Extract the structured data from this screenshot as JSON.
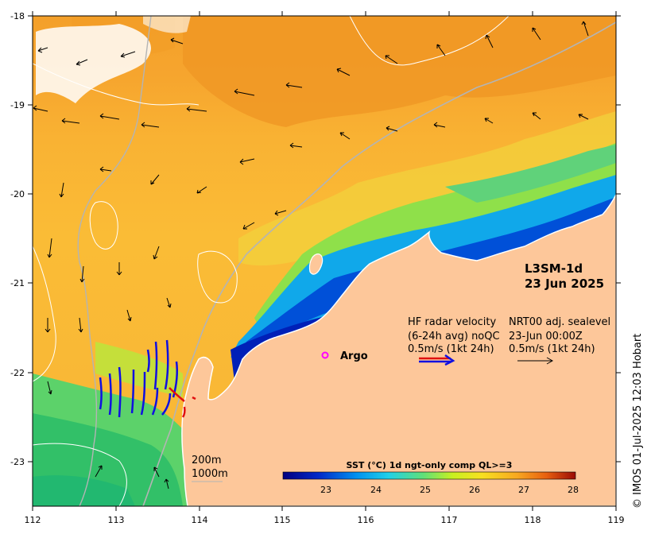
{
  "map": {
    "product": "L3SM-1d",
    "date": "23 Jun 2025",
    "credit": "© IMOS 01-Jul-2025 12:03 Hobart",
    "lon_ticks": [
      "112",
      "113",
      "114",
      "115",
      "116",
      "117",
      "118",
      "119"
    ],
    "lat_ticks": [
      "-18",
      "-19",
      "-20",
      "-21",
      "-22",
      "-23"
    ],
    "argo_label": "Argo",
    "hf_radar": {
      "line1": "HF radar velocity",
      "line2": "(6-24h avg) noQC",
      "line3": "0.5m/s (1kt 24h)"
    },
    "sealevel": {
      "line1": "NRT00 adj. sealevel",
      "line2": "23-Jun 00:00Z",
      "line3": "0.5m/s (1kt 24h)"
    },
    "isobaths": [
      "200m",
      "1000m"
    ],
    "colorbar": {
      "title": "SST (°C) 1d ngt-only comp QL>=3",
      "ticks": [
        "23",
        "24",
        "25",
        "26",
        "27",
        "28"
      ],
      "range": [
        22.25,
        28.1
      ]
    },
    "colors": {
      "land": "#fdc79a",
      "radar_arrow": "#1010e0",
      "radar_arrow_red": "#e01010",
      "argo_marker": "#ff00ff",
      "isobath": "#b4b4b4",
      "contour": "#ffffff"
    }
  }
}
